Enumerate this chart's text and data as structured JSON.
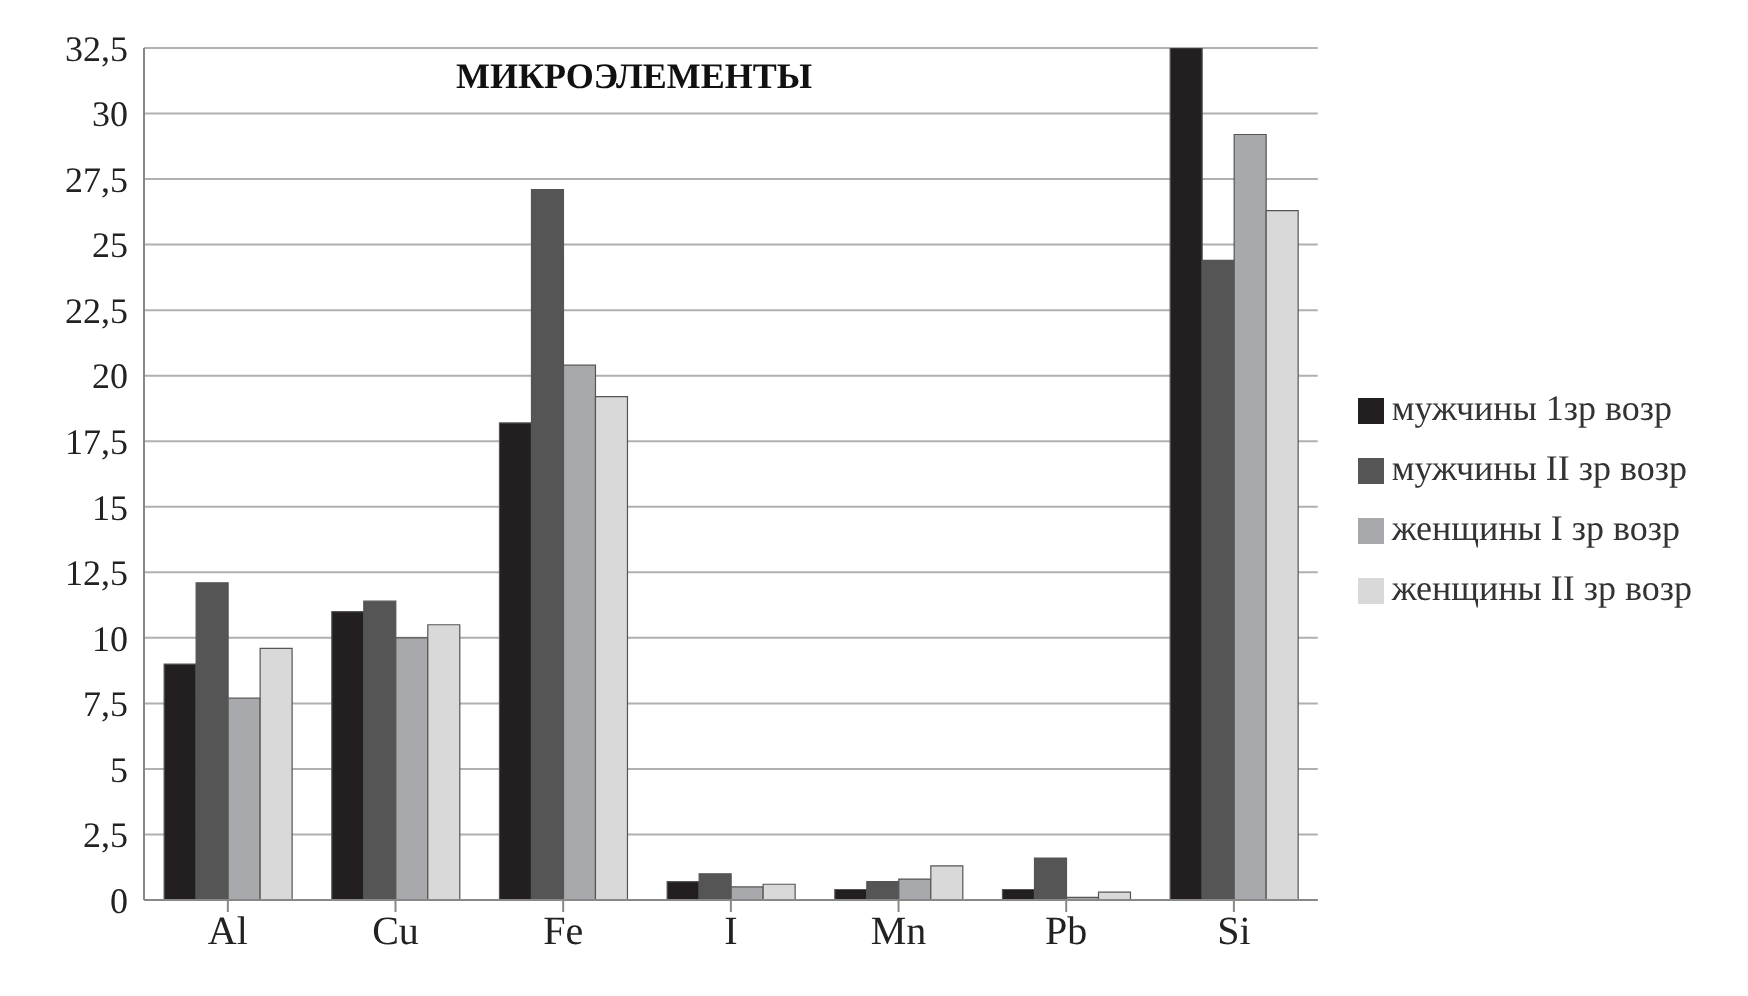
{
  "chart_data": {
    "type": "bar",
    "title": "МИКРОЭЛЕМЕНТЫ",
    "categories": [
      "Al",
      "Cu",
      "Fe",
      "I",
      "Mn",
      "Pb",
      "Si"
    ],
    "series": [
      {
        "name": "мужчины 1зр возр",
        "color": "#231f20",
        "values": [
          9,
          11,
          18.2,
          0.7,
          0.4,
          0.4,
          32.5
        ]
      },
      {
        "name": "мужчины II зр возр",
        "color": "#555555",
        "values": [
          12.1,
          11.4,
          27.1,
          1.0,
          0.7,
          1.6,
          24.4
        ]
      },
      {
        "name": "женщины I зр возр",
        "color": "#a7a9ac",
        "values": [
          7.7,
          10,
          20.4,
          0.5,
          0.8,
          0.1,
          29.2
        ]
      },
      {
        "name": "женщины II зр возр",
        "color": "#d9d9d9",
        "values": [
          9.6,
          10.5,
          19.2,
          0.6,
          1.3,
          0.3,
          26.3
        ]
      }
    ],
    "ylim": [
      0,
      32.5
    ],
    "yticks": [
      0,
      {
        "value": 2.5,
        "label": "2,5"
      },
      5,
      {
        "value": 7.5,
        "label": "7,5"
      },
      10,
      {
        "value": 12.5,
        "label": "12,5"
      },
      15,
      {
        "value": 17.5,
        "label": "17,5"
      },
      20,
      {
        "value": 22.5,
        "label": "22,5"
      },
      25,
      {
        "value": 27.5,
        "label": "27,5"
      },
      30,
      {
        "value": 32.5,
        "label": "32,5"
      }
    ],
    "grid": "y",
    "legend": "right"
  }
}
